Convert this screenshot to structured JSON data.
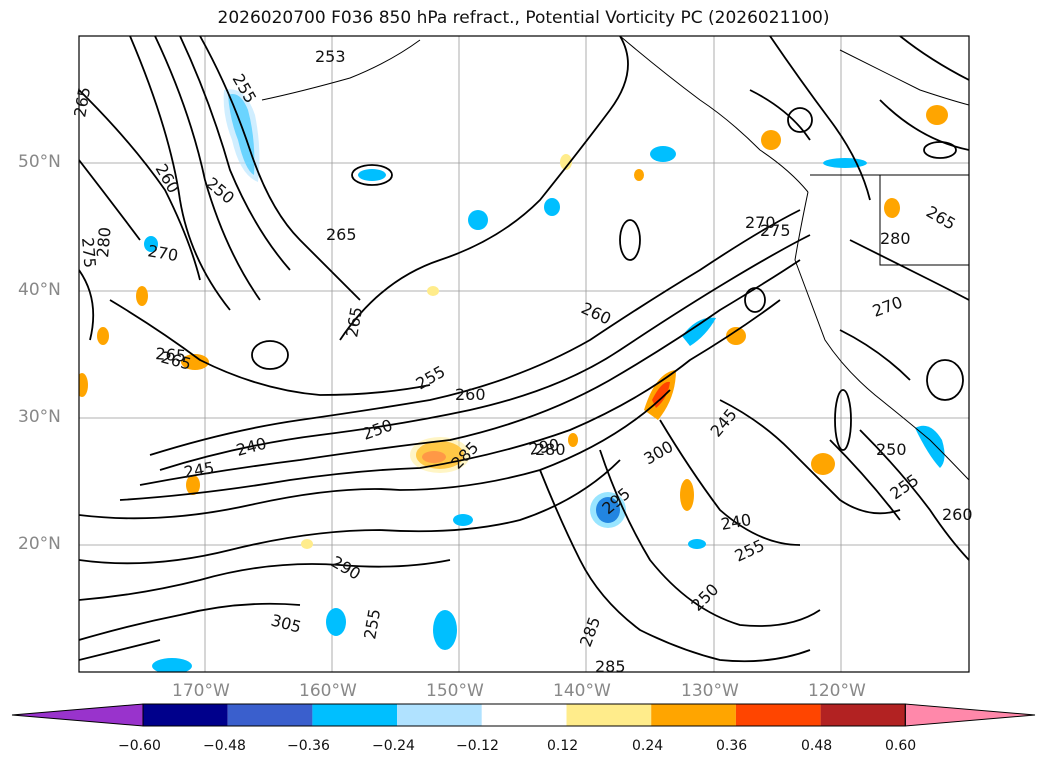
{
  "title": "2026020700 F036 850 hPa refract., Potential Vorticity PC (2026021100)",
  "lat_labels": [
    "50°N",
    "40°N",
    "30°N",
    "20°N"
  ],
  "lon_labels": [
    "170°W",
    "160°W",
    "150°W",
    "140°W",
    "130°W",
    "120°W"
  ],
  "colorbar": {
    "ticks": [
      "−0.60",
      "−0.48",
      "−0.36",
      "−0.24",
      "−0.12",
      "0.12",
      "0.24",
      "0.36",
      "0.48",
      "0.60"
    ],
    "colors": [
      "#9933cc",
      "#00008b",
      "#3a5fcd",
      "#00bfff",
      "#b0e2ff",
      "#ffffff",
      "#ffec8b",
      "#ffa500",
      "#ff4500",
      "#b22222",
      "#ff88aa"
    ]
  },
  "contour_labels": [
    "253",
    "255",
    "265",
    "260",
    "250",
    "275",
    "280",
    "270",
    "265",
    "240",
    "245",
    "250",
    "255",
    "260",
    "265",
    "270",
    "275",
    "280",
    "285",
    "290",
    "295",
    "300",
    "305",
    "255",
    "260",
    "270",
    "265",
    "245",
    "240",
    "250",
    "255",
    "265",
    "280",
    "285",
    "290",
    "285",
    "260",
    "250",
    "255",
    "265"
  ]
}
